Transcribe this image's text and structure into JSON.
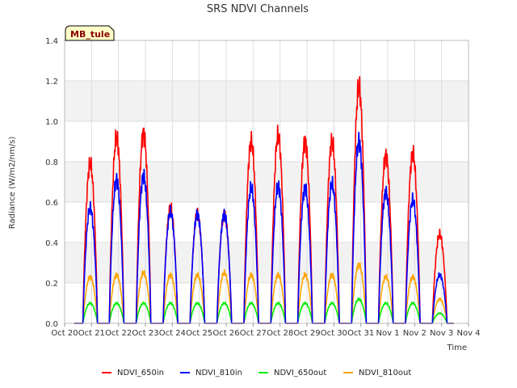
{
  "chart_data": {
    "type": "line",
    "title": "SRS NDVI Channels",
    "xlabel": "Time",
    "ylabel": "Radiance (W/m2/nm/s)",
    "site_label": "MB_tule",
    "xlim": [
      0,
      15
    ],
    "ylim": [
      0,
      1.4
    ],
    "x_ticks": [
      {
        "v": 0,
        "label": "Oct 20"
      },
      {
        "v": 1,
        "label": "Oct 21"
      },
      {
        "v": 2,
        "label": "Oct 22"
      },
      {
        "v": 3,
        "label": "Oct 23"
      },
      {
        "v": 4,
        "label": "Oct 24"
      },
      {
        "v": 5,
        "label": "Oct 25"
      },
      {
        "v": 6,
        "label": "Oct 26"
      },
      {
        "v": 7,
        "label": "Oct 27"
      },
      {
        "v": 8,
        "label": "Oct 28"
      },
      {
        "v": 9,
        "label": "Oct 29"
      },
      {
        "v": 10,
        "label": "Oct 30"
      },
      {
        "v": 11,
        "label": "Oct 31"
      },
      {
        "v": 12,
        "label": "Nov 1"
      },
      {
        "v": 13,
        "label": "Nov 2"
      },
      {
        "v": 14,
        "label": "Nov 3"
      },
      {
        "v": 15,
        "label": "Nov 4"
      }
    ],
    "y_ticks": [
      {
        "v": 0,
        "label": "0.0"
      },
      {
        "v": 0.2,
        "label": "0.2"
      },
      {
        "v": 0.4,
        "label": "0.4"
      },
      {
        "v": 0.6,
        "label": "0.6"
      },
      {
        "v": 0.8,
        "label": "0.8"
      },
      {
        "v": 1.0,
        "label": "1.0"
      },
      {
        "v": 1.2,
        "label": "1.2"
      },
      {
        "v": 1.4,
        "label": "1.4"
      }
    ],
    "data_start": 0.35,
    "data_end": 14.45,
    "daily_peaks": {
      "day_centers": [
        0.95,
        1.93,
        2.93,
        3.93,
        4.93,
        5.93,
        6.93,
        7.93,
        8.93,
        9.93,
        10.93,
        11.93,
        12.93,
        13.93
      ],
      "half_width": 0.27
    },
    "series": [
      {
        "name": "NDVI_650in",
        "color": "#ff0000",
        "peaks": [
          0.79,
          0.92,
          0.94,
          0.57,
          0.54,
          0.54,
          0.9,
          0.93,
          0.9,
          0.9,
          1.17,
          0.83,
          0.84,
          0.44
        ]
      },
      {
        "name": "NDVI_810in",
        "color": "#0000ff",
        "peaks": [
          0.57,
          0.71,
          0.73,
          0.55,
          0.54,
          0.54,
          0.67,
          0.68,
          0.67,
          0.69,
          0.9,
          0.65,
          0.61,
          0.24
        ]
      },
      {
        "name": "NDVI_650out",
        "color": "#00ee00",
        "peaks": [
          0.1,
          0.1,
          0.1,
          0.1,
          0.1,
          0.1,
          0.1,
          0.1,
          0.1,
          0.1,
          0.12,
          0.1,
          0.1,
          0.05
        ]
      },
      {
        "name": "NDVI_810out",
        "color": "#ffa500",
        "peaks": [
          0.23,
          0.24,
          0.25,
          0.24,
          0.24,
          0.25,
          0.24,
          0.24,
          0.24,
          0.24,
          0.29,
          0.23,
          0.23,
          0.12
        ]
      }
    ],
    "grid": true,
    "legend_position": "bottom"
  }
}
